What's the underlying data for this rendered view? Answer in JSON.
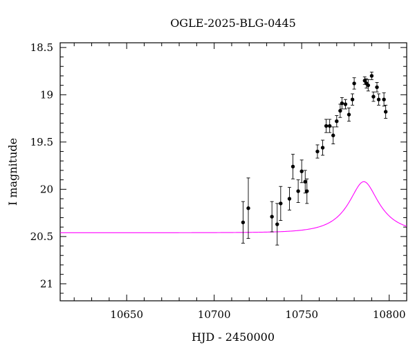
{
  "chart_data": {
    "type": "scatter",
    "title": "OGLE-2025-BLG-0445",
    "xlabel": "HJD - 2450000",
    "ylabel": "I magnitude",
    "xlim": [
      10612,
      10810
    ],
    "ylim": [
      21.18,
      18.45
    ],
    "y_inverted": true,
    "xticks": [
      10650,
      10700,
      10750,
      10800
    ],
    "yticks": [
      18.5,
      19,
      19.5,
      20,
      20.5,
      21
    ],
    "xtick_labels": [
      "10650",
      "10700",
      "10750",
      "10800"
    ],
    "ytick_labels": [
      "18.5",
      "19",
      "19.5",
      "20",
      "20.5",
      "21"
    ],
    "grid": false,
    "model_color": "#ff00ff",
    "point_color": "#000000",
    "model": {
      "t0": 10785.5,
      "tE": 18.2,
      "u0": 0.42,
      "I_base": 20.46,
      "f_source": 0.42
    },
    "series": [
      {
        "x": [
          10716.5,
          10719.5,
          10733,
          10736,
          10738,
          10743,
          10745,
          10748,
          10750,
          10752,
          10753,
          10759,
          10762,
          10764,
          10766,
          10768,
          10770,
          10772,
          10773,
          10775,
          10777,
          10779,
          10780,
          10786,
          10787,
          10788,
          10790,
          10791,
          10793,
          10794,
          10797,
          10798
        ],
        "y": [
          20.35,
          20.2,
          20.29,
          20.37,
          20.15,
          20.1,
          19.76,
          20.02,
          19.81,
          19.92,
          20.02,
          19.6,
          19.56,
          19.33,
          19.33,
          19.43,
          19.28,
          19.17,
          19.09,
          19.1,
          19.21,
          19.05,
          18.88,
          18.85,
          18.88,
          18.9,
          18.8,
          19.02,
          18.92,
          19.05,
          19.05,
          19.18
        ],
        "yerr": [
          0.22,
          0.32,
          0.16,
          0.22,
          0.18,
          0.12,
          0.13,
          0.12,
          0.12,
          0.12,
          0.13,
          0.07,
          0.08,
          0.07,
          0.07,
          0.09,
          0.06,
          0.07,
          0.06,
          0.05,
          0.07,
          0.06,
          0.06,
          0.04,
          0.05,
          0.06,
          0.04,
          0.05,
          0.05,
          0.06,
          0.07,
          0.07
        ]
      }
    ]
  }
}
